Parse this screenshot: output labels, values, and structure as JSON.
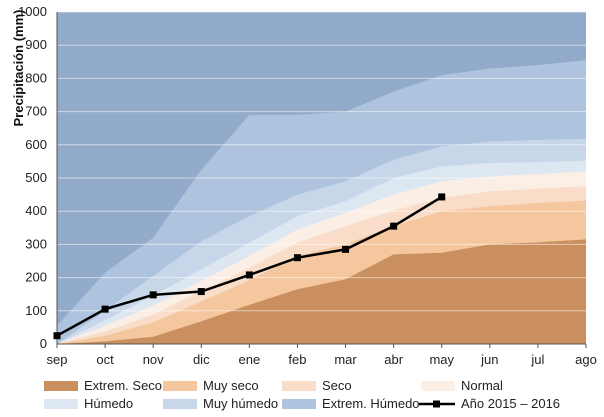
{
  "chart_data": {
    "type": "area",
    "title": "",
    "xlabel": "",
    "ylabel": "Precipitación (mm)",
    "ylim": [
      0,
      1000
    ],
    "yticks": [
      "0",
      "100",
      "200",
      "300",
      "400",
      "500",
      "600",
      "700",
      "800",
      "900",
      "1000"
    ],
    "categories": [
      "sep",
      "oct",
      "nov",
      "dic",
      "ene",
      "feb",
      "mar",
      "abr",
      "may",
      "jun",
      "jul",
      "ago"
    ],
    "grid": true,
    "legend_position": "bottom",
    "bands": [
      {
        "name": "Extrem. Seco",
        "color": "#c98f5e",
        "values": [
          0,
          8,
          22,
          68,
          118,
          165,
          195,
          270,
          275,
          300,
          306,
          315
        ]
      },
      {
        "name": "Muy seco",
        "color": "#f5c79f",
        "values": [
          0,
          25,
          65,
          128,
          192,
          265,
          300,
          355,
          400,
          415,
          425,
          432
        ]
      },
      {
        "name": "Seco",
        "color": "#f9ddc8",
        "values": [
          0,
          38,
          88,
          160,
          230,
          305,
          355,
          402,
          440,
          460,
          468,
          475
        ]
      },
      {
        "name": "Normal",
        "color": "#fbeee5",
        "values": [
          0,
          55,
          115,
          190,
          265,
          345,
          395,
          450,
          490,
          505,
          512,
          520
        ]
      },
      {
        "name": "Húmedo",
        "color": "#dde7f2",
        "values": [
          0,
          72,
          145,
          225,
          305,
          385,
          430,
          500,
          535,
          545,
          548,
          552
        ]
      },
      {
        "name": "Muy húmedo",
        "color": "#c7d6e8",
        "values": [
          0,
          100,
          205,
          310,
          385,
          450,
          490,
          555,
          595,
          610,
          615,
          618
        ]
      },
      {
        "name": "Extrem. Húmedo",
        "color": "#aec3dd",
        "values": [
          55,
          215,
          320,
          525,
          690,
          690,
          700,
          760,
          810,
          830,
          840,
          855
        ]
      }
    ],
    "top_band_color": "#93abca",
    "series": [
      {
        "name": "Año 2015 – 2016",
        "color": "#000000",
        "values": [
          25,
          105,
          148,
          158,
          208,
          260,
          285,
          355,
          443,
          null,
          null,
          null
        ]
      }
    ]
  }
}
